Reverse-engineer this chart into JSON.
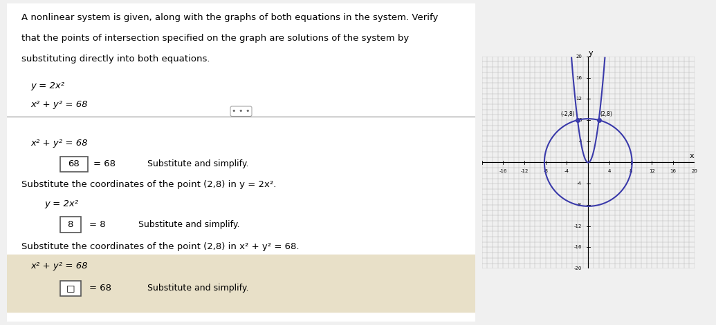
{
  "bg_color": "#f0f0f0",
  "left_panel_bg": "#ffffff",
  "right_panel_bg": "#d0d0d8",
  "title_text": "A nonlinear system is given, along with the graphs of both equations in the system. Verify\nthat the points of intersection specified on the graph are solutions of the system by\nsubstituting directly into both equations.",
  "system_eq1": "y = 2x²",
  "system_eq2": "x² + y² = 68",
  "divider_label": "• • •",
  "section1_eq": "x² + y² = 68",
  "section1_result": "68 = 68",
  "section1_note": "Substitute and simplify.",
  "section1_boxed": "68",
  "section2_intro": "Substitute the coordinates of the point (2,8) in y = 2x².",
  "section2_eq": "y = 2x²",
  "section2_result": "8 = 8",
  "section2_note": "Substitute and simplify.",
  "section3_intro": "Substitute the coordinates of the point (2,8) in x² + y² = 68.",
  "section3_eq": "x² + y² = 68",
  "section3_result": "□ = 68",
  "section3_note": "Substitute and simplify.",
  "section3_boxed": "□",
  "graph_xlim": [
    -20,
    20
  ],
  "graph_ylim": [
    -20,
    20
  ],
  "graph_xticks": [
    -16,
    -12,
    -8,
    -4,
    4,
    8,
    12,
    16,
    20
  ],
  "graph_yticks": [
    -20,
    -16,
    -12,
    -8,
    -4,
    4,
    8,
    12,
    16,
    20
  ],
  "parabola_color": "#3a3aaa",
  "circle_color": "#3a3aaa",
  "intersection_points": [
    [
      -2,
      8
    ],
    [
      2,
      8
    ]
  ],
  "point_color": "#3a3aaa",
  "graph_bg": "#c8c8d8",
  "grid_color": "#aaaaaa"
}
